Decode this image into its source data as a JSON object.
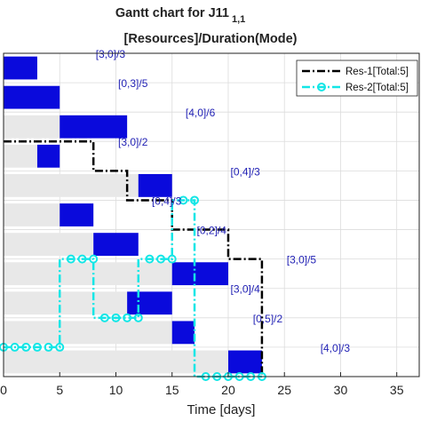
{
  "chart_data": {
    "type": "gantt",
    "title_main": "Gantt chart for J11",
    "title_sub": "1,1",
    "subtitle": "[Resources]/Duration(Mode)",
    "xlabel": "Time [days]",
    "xlim": [
      0,
      37
    ],
    "xticks": [
      "0",
      "5",
      "10",
      "15",
      "20",
      "25",
      "30",
      "35"
    ],
    "grid": true,
    "legend_position": "top-right",
    "colors": {
      "task": "#0a0adc",
      "slack": "#e8e8e8",
      "res1": "#000000",
      "res2": "#14e6e6",
      "label": "#1f1fb4"
    },
    "tasks": [
      {
        "label": "[3,0]/3",
        "es": 0,
        "start": 0,
        "end": 3
      },
      {
        "label": "[0,3]/5",
        "es": 0,
        "start": 0,
        "end": 5
      },
      {
        "label": "[4,0]/6",
        "es": 0,
        "start": 5,
        "end": 11
      },
      {
        "label": "[3,0]/2",
        "es": 0,
        "start": 3,
        "end": 5
      },
      {
        "label": "[0,4]/3",
        "es": 0,
        "start": 12,
        "end": 15
      },
      {
        "label": "[0,4]/3",
        "es": 0,
        "start": 5,
        "end": 8
      },
      {
        "label": "[0,2]/4",
        "es": 0,
        "start": 8,
        "end": 12
      },
      {
        "label": "[3,0]/5",
        "es": 0,
        "start": 15,
        "end": 20
      },
      {
        "label": "[3,0]/4",
        "es": 0,
        "start": 11,
        "end": 15
      },
      {
        "label": "[0,5]/2",
        "es": 0,
        "start": 15,
        "end": 17
      },
      {
        "label": "[4,0]/3",
        "es": 0,
        "start": 20,
        "end": 23
      }
    ],
    "series": [
      {
        "name": "Res-1[Total:5]",
        "style": "dash-dot",
        "points": [
          [
            0,
            8
          ],
          [
            8,
            8
          ],
          [
            8,
            7
          ],
          [
            11,
            7
          ],
          [
            11,
            6
          ],
          [
            15,
            6
          ],
          [
            15,
            5
          ],
          [
            20,
            5
          ],
          [
            20,
            4
          ],
          [
            23,
            4
          ],
          [
            23,
            0
          ]
        ]
      },
      {
        "name": "Res-2[Total:5]",
        "style": "dash-dot-circle",
        "points": [
          [
            0,
            1
          ],
          [
            1,
            1
          ],
          [
            2,
            1
          ],
          [
            3,
            1
          ],
          [
            4,
            1
          ],
          [
            5,
            1
          ],
          [
            5,
            4
          ],
          [
            6,
            4
          ],
          [
            7,
            4
          ],
          [
            8,
            4
          ],
          [
            8,
            2
          ],
          [
            9,
            2
          ],
          [
            10,
            2
          ],
          [
            11,
            2
          ],
          [
            12,
            2
          ],
          [
            12,
            4
          ],
          [
            13,
            4
          ],
          [
            14,
            4
          ],
          [
            15,
            4
          ],
          [
            15,
            6
          ],
          [
            16,
            6
          ],
          [
            17,
            6
          ],
          [
            17,
            0
          ],
          [
            18,
            0
          ],
          [
            19,
            0
          ],
          [
            20,
            0
          ],
          [
            21,
            0
          ],
          [
            22,
            0
          ],
          [
            23,
            0
          ]
        ]
      }
    ]
  }
}
